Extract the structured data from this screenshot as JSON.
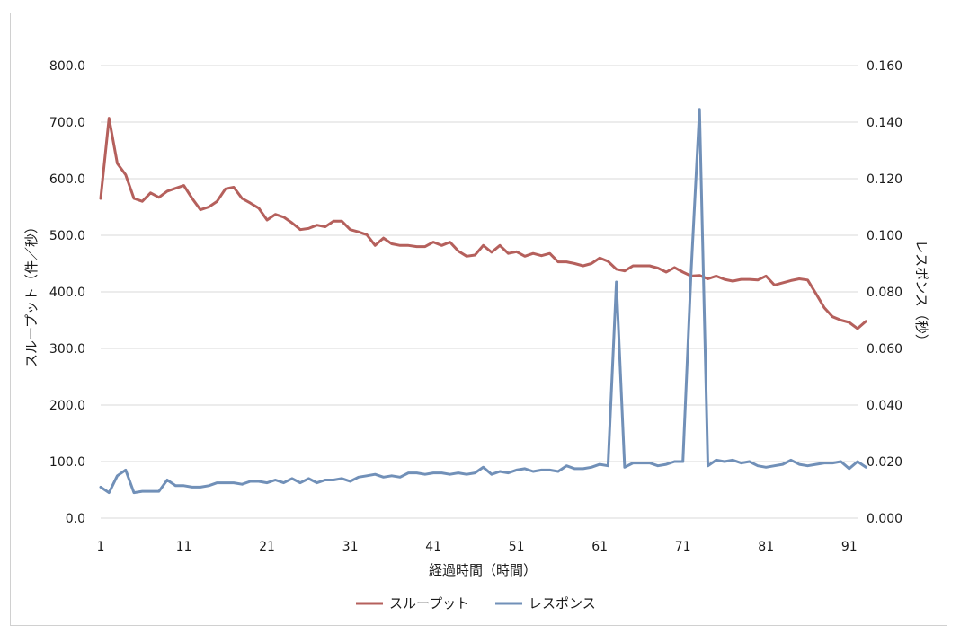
{
  "chart_data": {
    "type": "line",
    "title": "",
    "xlabel": "経過時間（時間）",
    "ylabel_left": "スループット（件／秒）",
    "ylabel_right": "レスポンス（秒）",
    "x_tick_labels": [
      "1",
      "11",
      "21",
      "31",
      "41",
      "51",
      "61",
      "71",
      "81",
      "91"
    ],
    "y_left_ticks": [
      "0.0",
      "100.0",
      "200.0",
      "300.0",
      "400.0",
      "500.0",
      "600.0",
      "700.0",
      "800.0"
    ],
    "y_right_ticks": [
      "0.000",
      "0.020",
      "0.040",
      "0.060",
      "0.080",
      "0.100",
      "0.120",
      "0.140",
      "0.160"
    ],
    "ylim_left": [
      0,
      800
    ],
    "ylim_right": [
      0,
      0.16
    ],
    "xlim": [
      1,
      92
    ],
    "grid": true,
    "legend_position": "bottom",
    "series": [
      {
        "name": "スループット",
        "axis": "left",
        "color": "#b5605c",
        "values": [
          565,
          707,
          627,
          607,
          565,
          560,
          575,
          567,
          578,
          583,
          588,
          565,
          545,
          550,
          560,
          582,
          585,
          565,
          557,
          548,
          527,
          537,
          532,
          522,
          510,
          512,
          518,
          515,
          525,
          525,
          510,
          506,
          501,
          482,
          495,
          485,
          482,
          482,
          480,
          480,
          488,
          482,
          488,
          472,
          463,
          465,
          482,
          470,
          482,
          468,
          471,
          463,
          468,
          464,
          468,
          453,
          453,
          450,
          446,
          450,
          460,
          454,
          440,
          437,
          446,
          446,
          446,
          442,
          435,
          443,
          435,
          428,
          429,
          423,
          428,
          422,
          419,
          422,
          422,
          421,
          428,
          412,
          416,
          420,
          423,
          421,
          397,
          372,
          356,
          350,
          346,
          335,
          348
        ]
      },
      {
        "name": "レスポンス",
        "axis": "right",
        "color": "#7190b8",
        "values": [
          0.011,
          0.009,
          0.015,
          0.017,
          0.009,
          0.0095,
          0.0095,
          0.0095,
          0.0135,
          0.0115,
          0.0115,
          0.011,
          0.011,
          0.0115,
          0.0125,
          0.0125,
          0.0125,
          0.012,
          0.013,
          0.013,
          0.0125,
          0.0135,
          0.0125,
          0.014,
          0.0125,
          0.014,
          0.0125,
          0.0135,
          0.0135,
          0.014,
          0.013,
          0.0145,
          0.015,
          0.0155,
          0.0145,
          0.015,
          0.0145,
          0.016,
          0.016,
          0.0155,
          0.016,
          0.016,
          0.0155,
          0.016,
          0.0155,
          0.016,
          0.018,
          0.0155,
          0.0165,
          0.016,
          0.017,
          0.0175,
          0.0165,
          0.017,
          0.017,
          0.0165,
          0.0185,
          0.0175,
          0.0175,
          0.018,
          0.019,
          0.0185,
          0.0835,
          0.018,
          0.0195,
          0.0195,
          0.0195,
          0.0185,
          0.019,
          0.02,
          0.02,
          0.0875,
          0.1445,
          0.0185,
          0.0205,
          0.02,
          0.0205,
          0.0195,
          0.02,
          0.0185,
          0.018,
          0.0185,
          0.019,
          0.0205,
          0.019,
          0.0185,
          0.019,
          0.0195,
          0.0195,
          0.02,
          0.0175,
          0.02,
          0.018
        ]
      }
    ]
  }
}
